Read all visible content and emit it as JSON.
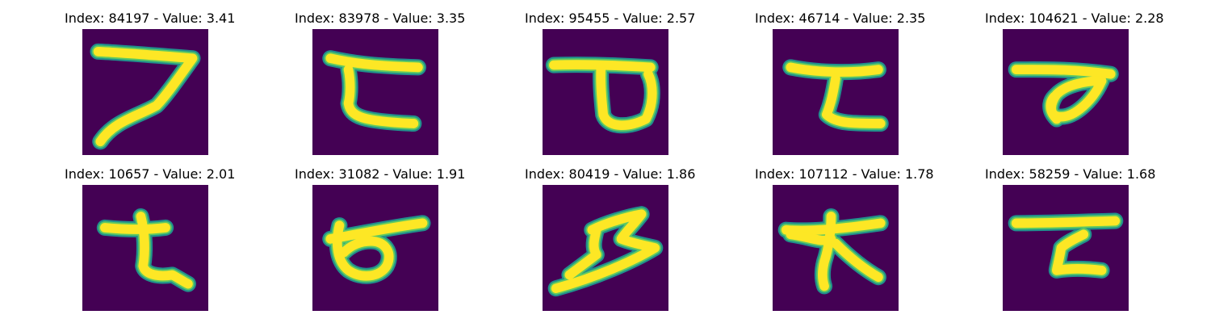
{
  "colors": {
    "background": "#440154",
    "edge": "#21908c",
    "mid": "#5ec962",
    "stroke": "#fde725"
  },
  "panels": [
    {
      "title": "Index: 84197 - Value: 3.41"
    },
    {
      "title": "Index: 83978 - Value: 3.35"
    },
    {
      "title": "Index: 95455 - Value: 2.57"
    },
    {
      "title": "Index: 46714 - Value: 2.35"
    },
    {
      "title": "Index: 104621 - Value: 2.28"
    },
    {
      "title": "Index: 10657 - Value: 2.01"
    },
    {
      "title": "Index: 31082 - Value: 1.91"
    },
    {
      "title": "Index: 80419 - Value: 1.86"
    },
    {
      "title": "Index: 107112 - Value: 1.78"
    },
    {
      "title": "Index: 58259 - Value: 1.68"
    }
  ]
}
